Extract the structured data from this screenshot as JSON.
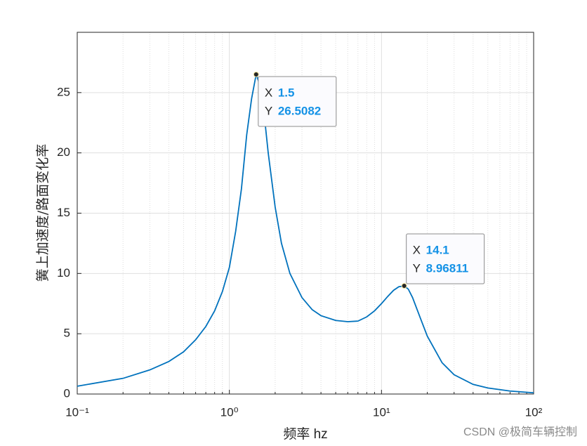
{
  "chart_data": {
    "type": "line",
    "xlabel": "频率 hz",
    "ylabel": "簧上加速度/路面变化率",
    "x_scale": "log",
    "grid": true,
    "xlim": [
      0.1,
      100
    ],
    "ylim": [
      0,
      30
    ],
    "xticks": [
      {
        "value": 0.1,
        "label": "10⁻¹"
      },
      {
        "value": 1,
        "label": "10⁰"
      },
      {
        "value": 10,
        "label": "10¹"
      },
      {
        "value": 100,
        "label": "10²"
      }
    ],
    "xminorticks": [
      0.2,
      0.3,
      0.4,
      0.5,
      0.6,
      0.7,
      0.8,
      0.9,
      2,
      3,
      4,
      5,
      6,
      7,
      8,
      9,
      20,
      30,
      40,
      50,
      60,
      70,
      80,
      90
    ],
    "yticks": [
      0,
      5,
      10,
      15,
      20,
      25
    ],
    "x": [
      0.1,
      0.2,
      0.3,
      0.4,
      0.5,
      0.6,
      0.7,
      0.8,
      0.9,
      1.0,
      1.1,
      1.2,
      1.3,
      1.4,
      1.5,
      1.6,
      1.7,
      1.8,
      2.0,
      2.2,
      2.5,
      3,
      3.5,
      4,
      5,
      6,
      7,
      8,
      9,
      10,
      11,
      12,
      13,
      14.1,
      15,
      16,
      18,
      20,
      25,
      30,
      40,
      50,
      70,
      100
    ],
    "color": "#0072bd",
    "values": [
      0.65,
      1.3,
      2.0,
      2.7,
      3.5,
      4.5,
      5.6,
      6.9,
      8.5,
      10.5,
      13.5,
      17.0,
      21.5,
      24.5,
      26.5082,
      25.5,
      23,
      20,
      15.5,
      12.5,
      10,
      8,
      7,
      6.5,
      6.1,
      6.0,
      6.05,
      6.4,
      6.9,
      7.5,
      8.1,
      8.6,
      8.9,
      8.96811,
      8.7,
      8.0,
      6.3,
      4.8,
      2.6,
      1.6,
      0.8,
      0.5,
      0.25,
      0.1
    ],
    "datatip_labels": [
      "X",
      "Y"
    ],
    "datatips": [
      {
        "x": 1.5,
        "y": 26.5082
      },
      {
        "x": 14.1,
        "y": 8.96811
      }
    ],
    "watermark": "CSDN @极简车辆控制"
  }
}
